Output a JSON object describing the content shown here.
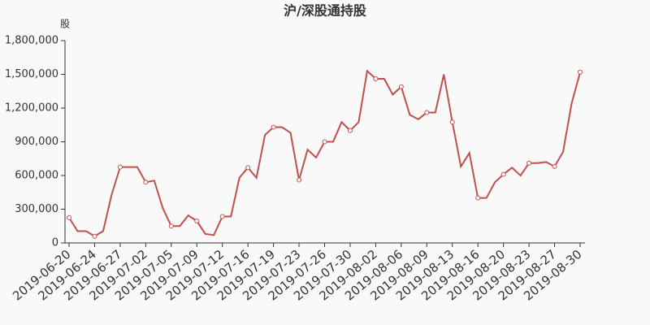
{
  "chart_data": {
    "type": "line",
    "title": "沪/深股通持股",
    "y_label": "股",
    "categories": [
      "2019-06-20",
      null,
      null,
      "2019-06-24",
      null,
      null,
      "2019-06-27",
      null,
      null,
      "2019-07-02",
      null,
      null,
      "2019-07-05",
      null,
      null,
      "2019-07-09",
      null,
      null,
      "2019-07-12",
      null,
      null,
      "2019-07-16",
      null,
      null,
      "2019-07-19",
      null,
      null,
      "2019-07-23",
      null,
      null,
      "2019-07-26",
      null,
      null,
      "2019-07-30",
      null,
      null,
      "2019-08-02",
      null,
      null,
      "2019-08-06",
      null,
      null,
      "2019-08-09",
      null,
      null,
      "2019-08-13",
      null,
      null,
      "2019-08-16",
      null,
      null,
      "2019-08-20",
      null,
      null,
      "2019-08-23",
      null,
      null,
      "2019-08-27",
      null,
      null,
      "2019-08-30"
    ],
    "values": [
      225000,
      105000,
      105000,
      60000,
      105000,
      430000,
      675000,
      675000,
      675000,
      540000,
      555000,
      310000,
      150000,
      150000,
      245000,
      195000,
      80000,
      70000,
      235000,
      235000,
      580000,
      670000,
      580000,
      960000,
      1030000,
      1030000,
      980000,
      560000,
      830000,
      760000,
      900000,
      900000,
      1075000,
      1000000,
      1075000,
      1530000,
      1460000,
      1460000,
      1320000,
      1390000,
      1140000,
      1100000,
      1160000,
      1160000,
      1500000,
      1075000,
      680000,
      800000,
      400000,
      400000,
      540000,
      610000,
      670000,
      600000,
      710000,
      710000,
      720000,
      680000,
      810000,
      1240000,
      1520000
    ],
    "color": "#c0504d",
    "ylim": [
      0,
      1800000
    ],
    "yticks": [
      0,
      {
        "value": 300000,
        "label": "300,000"
      },
      {
        "value": 600000,
        "label": "600,000"
      },
      {
        "value": 900000,
        "label": "900,000"
      },
      {
        "value": 1200000,
        "label": "1,200,000"
      },
      {
        "value": 1500000,
        "label": "1,500,000"
      },
      {
        "value": 1800000,
        "label": "1,800,000"
      }
    ]
  }
}
